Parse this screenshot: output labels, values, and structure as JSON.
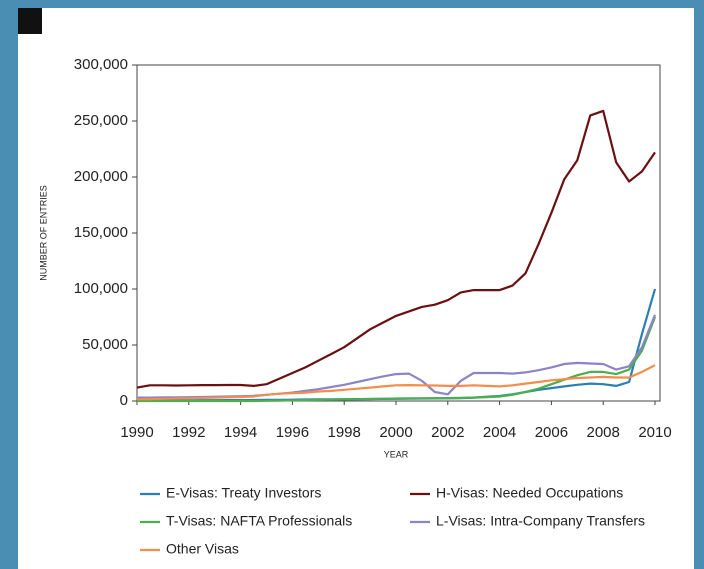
{
  "chart_data": {
    "type": "line",
    "x_label": "YEAR",
    "y_label": "NUMBER OF ENTRIES",
    "x": [
      1990,
      1990.5,
      1991,
      1991.5,
      1992,
      1992.5,
      1993,
      1993.5,
      1994,
      1994.5,
      1995,
      1995.5,
      1996,
      1996.5,
      1997,
      1997.5,
      1998,
      1998.5,
      1999,
      1999.5,
      2000,
      2000.5,
      2001,
      2001.5,
      2002,
      2002.5,
      2003,
      2003.5,
      2004,
      2004.5,
      2005,
      2005.5,
      2006,
      2006.5,
      2007,
      2007.5,
      2008,
      2008.5,
      2009,
      2009.5,
      2010
    ],
    "xlim": [
      1990,
      2010
    ],
    "xticks": [
      1990,
      1992,
      1994,
      1996,
      1998,
      2000,
      2002,
      2004,
      2006,
      2008,
      2010
    ],
    "ylim": [
      0,
      300000
    ],
    "yticks": [
      0,
      {
        "value": 50000,
        "label": "50,000"
      },
      {
        "value": 100000,
        "label": "100,000"
      },
      {
        "value": 150000,
        "label": "150,000"
      },
      {
        "value": 200000,
        "label": "200,000"
      },
      {
        "value": 250000,
        "label": "250,000"
      },
      {
        "value": 300000,
        "label": "300,000"
      }
    ],
    "grid": false,
    "series": [
      {
        "name": "E-Visas: Treaty Investors",
        "color": "#2a7fb5",
        "values": [
          500,
          500,
          500,
          600,
          600,
          700,
          700,
          800,
          800,
          900,
          1000,
          1100,
          1200,
          1300,
          1400,
          1500,
          1600,
          1700,
          1800,
          1900,
          2000,
          2100,
          2200,
          2300,
          2400,
          2600,
          3000,
          3800,
          4500,
          6000,
          8000,
          10000,
          11500,
          13000,
          14500,
          15500,
          15000,
          13500,
          17000,
          60000,
          100000
        ]
      },
      {
        "name": "H-Visas: Needed Occupations",
        "color": "#6b1010",
        "values": [
          12000,
          14000,
          14000,
          13800,
          14000,
          14200,
          14200,
          14300,
          14300,
          13500,
          15000,
          20000,
          25000,
          30000,
          36000,
          42000,
          48000,
          56000,
          64000,
          70000,
          76000,
          80000,
          84000,
          86000,
          90000,
          97000,
          99000,
          99000,
          99000,
          103000,
          114000,
          140000,
          168000,
          198000,
          215000,
          255000,
          259000,
          213000,
          196000,
          205000,
          222000
        ]
      },
      {
        "name": "T-Visas: NAFTA Professionals",
        "color": "#4cae4c",
        "values": [
          0,
          0,
          0,
          0,
          0,
          0,
          0,
          0,
          0,
          0,
          200,
          400,
          600,
          800,
          1000,
          1200,
          1400,
          1600,
          1800,
          2000,
          2200,
          2300,
          2400,
          2500,
          2600,
          2800,
          3000,
          3500,
          4000,
          5500,
          8000,
          11000,
          15000,
          19000,
          23000,
          26000,
          26000,
          24000,
          28000,
          45000,
          75000
        ]
      },
      {
        "name": "L-Visas: Intra-Company Transfers",
        "color": "#8c84c9",
        "values": [
          3000,
          3000,
          3200,
          3300,
          3400,
          3600,
          3800,
          4000,
          4300,
          4600,
          5500,
          6500,
          7500,
          9000,
          10500,
          12500,
          14500,
          17000,
          19500,
          22000,
          24000,
          24500,
          18000,
          8000,
          6000,
          18000,
          25000,
          25000,
          25000,
          24500,
          25500,
          27500,
          30000,
          33000,
          34000,
          33500,
          33000,
          28000,
          31000,
          48000,
          77000
        ]
      },
      {
        "name": "Other Visas",
        "color": "#f28d4b",
        "values": [
          1500,
          1700,
          2000,
          2200,
          2500,
          2800,
          3000,
          3300,
          3600,
          4000,
          5500,
          6500,
          7000,
          7500,
          8500,
          9000,
          10000,
          11000,
          12000,
          13000,
          14000,
          14200,
          14000,
          13800,
          13500,
          13500,
          14000,
          13500,
          13000,
          14000,
          15500,
          17000,
          18500,
          19500,
          20500,
          21000,
          21500,
          21000,
          21000,
          26000,
          32000
        ]
      }
    ]
  }
}
